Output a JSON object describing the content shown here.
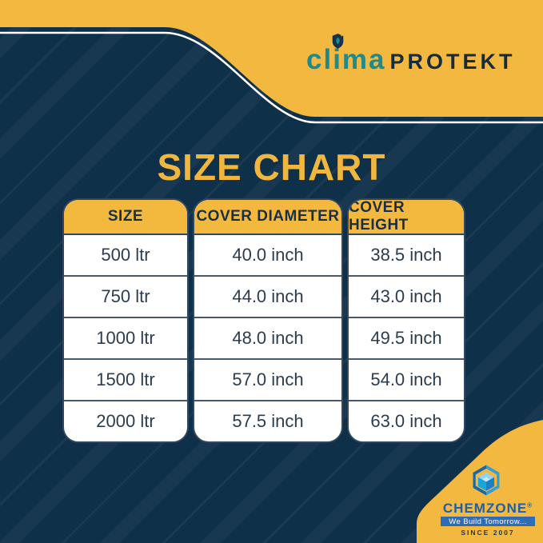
{
  "colors": {
    "gold": "#F2B840",
    "navy_background": "#0E3049",
    "teal_brand": "#1E8A8C",
    "dark_navy_text": "#172B3F",
    "table_border": "#32475D",
    "white_line": "#FFFFFF",
    "chemzone_blue": "#1F5FA9",
    "tagline_strip_blue": "#2E6CB5"
  },
  "banner": {
    "brand_primary": "clima",
    "brand_secondary": "PROTEKT",
    "shield_icon": "shield-leaf-icon"
  },
  "title": "SIZE CHART",
  "chart_data": {
    "type": "table",
    "title": "SIZE CHART",
    "columns": [
      "SIZE",
      "COVER DIAMETER",
      "COVER HEIGHT"
    ],
    "rows": [
      [
        "500 ltr",
        "40.0 inch",
        "38.5 inch"
      ],
      [
        "750 ltr",
        "44.0 inch",
        "43.0 inch"
      ],
      [
        "1000 ltr",
        "48.0 inch",
        "49.5 inch"
      ],
      [
        "1500 ltr",
        "57.0 inch",
        "54.0 inch"
      ],
      [
        "2000 ltr",
        "57.5 inch",
        "63.0 inch"
      ]
    ]
  },
  "footer": {
    "company": "CHEMZONE",
    "registered": "®",
    "tagline": "We Build Tomorrow...",
    "since": "SINCE 2007",
    "cube_icon": "isometric-cube-icon"
  }
}
